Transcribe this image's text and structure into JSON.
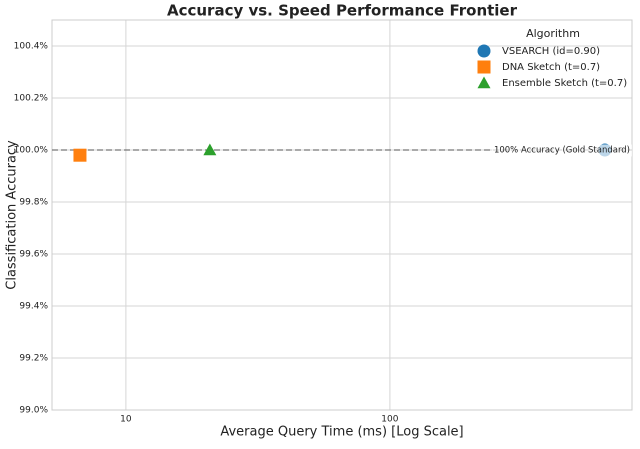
{
  "chart_data": {
    "type": "scatter",
    "title": "Accuracy vs. Speed Performance Frontier",
    "x_label": "Average Query Time (ms) [Log Scale]",
    "y_label": "Classification Accuracy",
    "xscale": "log",
    "xlim": [
      5.25,
      826
    ],
    "xticks": [
      10,
      100
    ],
    "ylim": [
      99.0,
      100.5
    ],
    "yticks": [
      {
        "value": 99.0,
        "label": "99.0%"
      },
      {
        "value": 99.2,
        "label": "99.2%"
      },
      {
        "value": 99.4,
        "label": "99.4%"
      },
      {
        "value": 99.6,
        "label": "99.6%"
      },
      {
        "value": 99.8,
        "label": "99.8%"
      },
      {
        "value": 100.0,
        "label": "100.0%"
      },
      {
        "value": 100.2,
        "label": "100.2%"
      },
      {
        "value": 100.4,
        "label": "100.4%"
      }
    ],
    "grid": true,
    "legend_title": "Algorithm",
    "legend_position": "upper-right",
    "series": [
      {
        "name": "VSEARCH (id=0.90)",
        "color": "#1f77b4",
        "marker": "circle",
        "x": [
          652
        ],
        "values": [
          100.0
        ]
      },
      {
        "name": "DNA Sketch (t=0.7)",
        "color": "#ff7f0e",
        "marker": "square",
        "x": [
          6.7
        ],
        "values": [
          99.98
        ]
      },
      {
        "name": "Ensemble Sketch (t=0.7)",
        "color": "#2ca02c",
        "marker": "triangle",
        "x": [
          20.8
        ],
        "values": [
          100.0
        ]
      }
    ],
    "reference_line": {
      "value": 100.0,
      "label": "100% Accuracy (Gold Standard)",
      "color": "#777777"
    }
  }
}
